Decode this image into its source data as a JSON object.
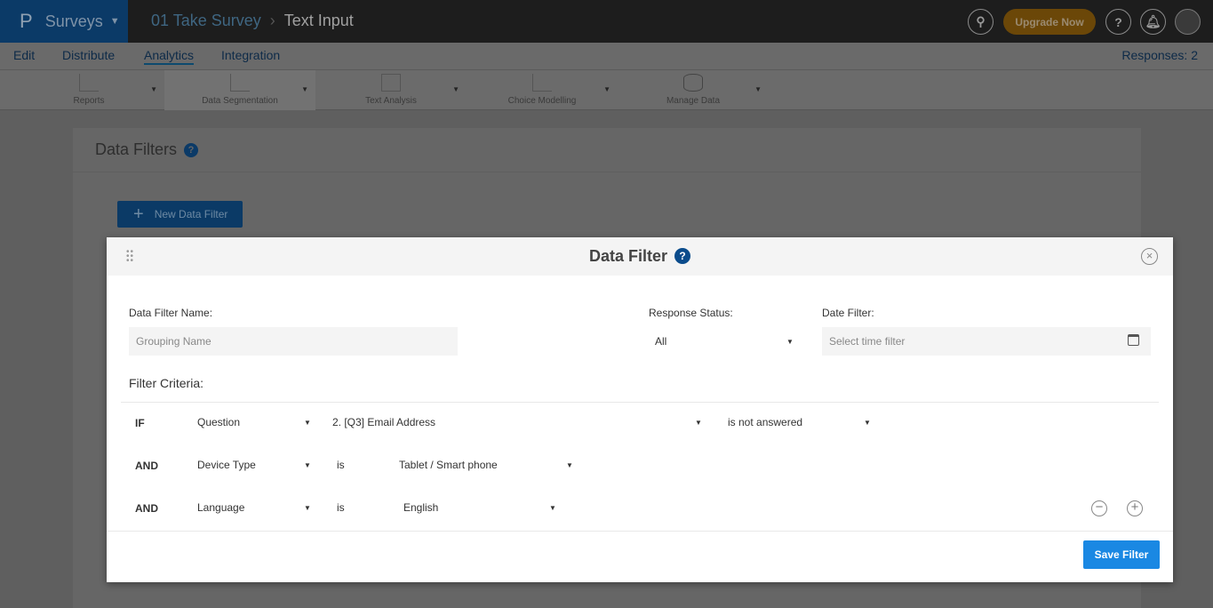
{
  "app": {
    "logo": "P",
    "name": "Surveys",
    "breadcrumb": [
      "01 Take Survey",
      "Text Input"
    ]
  },
  "header": {
    "upgrade_label": "Upgrade Now",
    "icons": [
      "search-icon",
      "help-icon",
      "bell-icon",
      "avatar"
    ]
  },
  "nav": {
    "items": [
      "Edit",
      "Distribute",
      "Analytics",
      "Integration"
    ],
    "active": "Analytics",
    "responses": "Responses: 2"
  },
  "toolbar": {
    "items": [
      "Reports",
      "Data Segmentation",
      "Text Analysis",
      "Choice Modelling",
      "Manage Data"
    ],
    "active": "Data Segmentation"
  },
  "panel": {
    "title": "Data Filters",
    "new_button": "New Data Filter"
  },
  "modal": {
    "title": "Data Filter",
    "name_label": "Data Filter Name:",
    "name_placeholder": "Grouping Name",
    "status_label": "Response Status:",
    "status_value": "All",
    "date_label": "Date Filter:",
    "date_placeholder": "Select time filter",
    "criteria_label": "Filter Criteria:",
    "rows": [
      {
        "op": "IF",
        "field": "Question",
        "middle": "2. [Q3] Email Address",
        "value": "is not answered"
      },
      {
        "op": "AND",
        "field": "Device Type",
        "middle": "is",
        "value": "Tablet / Smart phone"
      },
      {
        "op": "AND",
        "field": "Language",
        "middle": "is",
        "value": "English"
      }
    ],
    "save_label": "Save Filter"
  },
  "colors": {
    "accent": "#1a88e3",
    "brand": "#0b4c8c",
    "upgrade": "#e39510"
  }
}
